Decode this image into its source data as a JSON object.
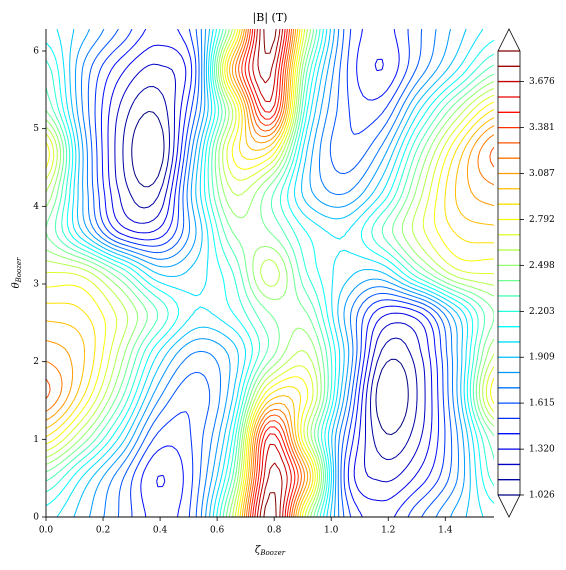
{
  "chart_data": {
    "type": "contour",
    "title": "|B| (T)",
    "xlabel": {
      "symbol": "ζ",
      "subscript": "Boozer"
    },
    "ylabel": {
      "symbol": "θ",
      "subscript": "Boozer"
    },
    "x": [
      0,
      0.1309,
      0.2618,
      0.3927,
      0.5236,
      0.6545,
      0.7854,
      0.9163,
      1.0472,
      1.1781,
      1.309,
      1.4399,
      1.5708
    ],
    "y": [
      0,
      0.5236,
      1.0472,
      1.5708,
      2.0944,
      2.618,
      3.1416,
      3.6652,
      4.1888,
      4.7124,
      5.236,
      5.7596,
      6.2832
    ],
    "z": [
      [
        2.05,
        1.85,
        1.6,
        1.38,
        1.6,
        2.6,
        3.95,
        2.6,
        1.6,
        1.38,
        1.6,
        1.85,
        2.05
      ],
      [
        2.35,
        2.0,
        1.65,
        1.32,
        1.55,
        2.3,
        3.8,
        3.1,
        1.5,
        1.2,
        1.35,
        1.7,
        2.25
      ],
      [
        2.9,
        2.5,
        2.0,
        1.5,
        1.55,
        2.1,
        3.6,
        2.6,
        1.6,
        1.05,
        1.2,
        1.7,
        2.4
      ],
      [
        3.3,
        2.9,
        2.35,
        1.75,
        1.55,
        1.9,
        2.9,
        2.8,
        1.8,
        0.95,
        1.15,
        1.8,
        2.85
      ],
      [
        3.15,
        3.0,
        2.55,
        2.0,
        1.7,
        1.85,
        2.35,
        2.6,
        1.9,
        1.1,
        1.2,
        1.8,
        2.6
      ],
      [
        2.95,
        2.9,
        2.65,
        2.3,
        2.0,
        2.1,
        2.4,
        2.4,
        1.8,
        1.35,
        1.4,
        1.9,
        2.4
      ],
      [
        2.7,
        2.65,
        2.3,
        1.9,
        1.95,
        2.2,
        2.65,
        2.2,
        1.95,
        1.9,
        2.3,
        2.65,
        2.7
      ],
      [
        2.4,
        1.9,
        1.4,
        1.35,
        1.8,
        2.4,
        2.4,
        2.1,
        2.0,
        2.3,
        2.65,
        2.9,
        2.95
      ],
      [
        2.6,
        1.8,
        1.2,
        1.1,
        1.9,
        2.6,
        2.35,
        1.85,
        1.7,
        2.0,
        2.55,
        3.0,
        3.15
      ],
      [
        2.85,
        1.8,
        1.15,
        0.95,
        1.8,
        2.8,
        2.9,
        1.9,
        1.55,
        1.75,
        2.35,
        2.9,
        3.3
      ],
      [
        2.4,
        1.7,
        1.2,
        1.05,
        1.6,
        2.6,
        3.6,
        2.1,
        1.55,
        1.5,
        2.0,
        2.5,
        2.9
      ],
      [
        2.25,
        1.7,
        1.35,
        1.2,
        1.5,
        3.1,
        3.8,
        2.3,
        1.55,
        1.32,
        1.65,
        2.0,
        2.35
      ],
      [
        2.05,
        1.85,
        1.6,
        1.38,
        1.6,
        2.6,
        3.95,
        2.6,
        1.6,
        1.38,
        1.6,
        1.85,
        2.05
      ]
    ],
    "levels": [
      1.026,
      1.124,
      1.222,
      1.32,
      1.419,
      1.517,
      1.615,
      1.713,
      1.811,
      1.909,
      2.007,
      2.105,
      2.203,
      2.302,
      2.4,
      2.498,
      2.596,
      2.694,
      2.792,
      2.89,
      2.989,
      3.087,
      3.185,
      3.283,
      3.381,
      3.479,
      3.577,
      3.676,
      3.774,
      3.872
    ],
    "colormap": "jet",
    "colorbar": {
      "extend": "both",
      "ticks": [
        1.026,
        {
          "value": 1.32,
          "label": "1.320"
        },
        1.615,
        1.909,
        2.203,
        2.498,
        2.792,
        3.087,
        3.381,
        3.676
      ]
    },
    "xlim": [
      0,
      1.5708
    ],
    "ylim": [
      0,
      6.2832
    ],
    "xticks": [
      {
        "value": 0,
        "label": "0.0"
      },
      0.2,
      0.4,
      0.6,
      0.8,
      {
        "value": 1,
        "label": "1.0"
      },
      1.2,
      1.4
    ],
    "yticks": [
      0,
      1,
      2,
      3,
      4,
      5,
      6
    ]
  }
}
